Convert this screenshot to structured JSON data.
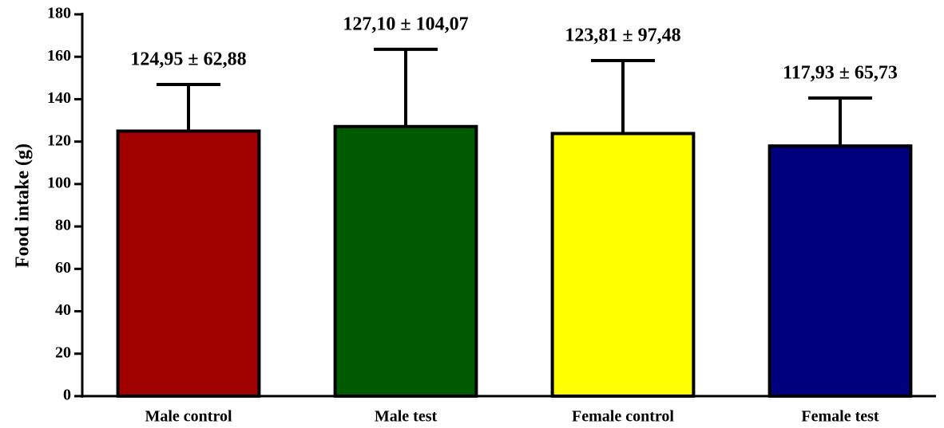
{
  "chart_data": {
    "type": "bar",
    "ylabel": "Food intake (g)",
    "categories": [
      "Male control",
      "Male test",
      "Female control",
      "Female test"
    ],
    "values": [
      124.95,
      127.1,
      123.81,
      117.93
    ],
    "errors": [
      22,
      36.4,
      34.4,
      22.6
    ],
    "value_labels": [
      "124,95 ± 62,88",
      "127,10 ± 104,07",
      "123,81 ± 97,48",
      "117,93 ± 65,73"
    ],
    "colors": [
      "#a00000",
      "#005a00",
      "#ffff00",
      "#00007f"
    ],
    "ylim": [
      0,
      180
    ],
    "yticks": [
      0,
      20,
      40,
      60,
      80,
      100,
      120,
      140,
      160,
      180
    ]
  }
}
